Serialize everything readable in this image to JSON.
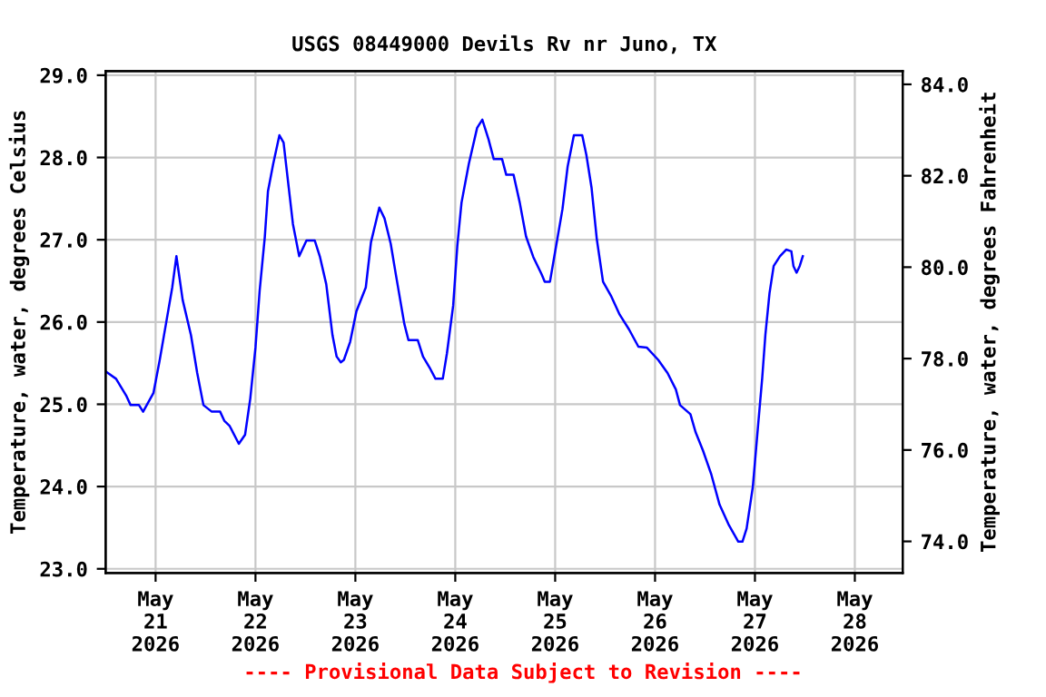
{
  "chart_data": {
    "type": "line",
    "title": "USGS 08449000 Devils Rv nr Juno, TX",
    "ylabel": "Temperature, water, degrees Celsius",
    "y2label": "Temperature, water, degrees Fahrenheit",
    "annotations": [
      "---- Provisional Data Subject to Revision ----"
    ],
    "xlim": [
      "2026-05-20T12:00",
      "2026-05-28T11:30"
    ],
    "xticks": [
      {
        "value": "2026-05-21",
        "label": "May\n21\n2026"
      },
      {
        "value": "2026-05-22",
        "label": "May\n22\n2026"
      },
      {
        "value": "2026-05-23",
        "label": "May\n23\n2026"
      },
      {
        "value": "2026-05-24",
        "label": "May\n24\n2026"
      },
      {
        "value": "2026-05-25",
        "label": "May\n25\n2026"
      },
      {
        "value": "2026-05-26",
        "label": "May\n26\n2026"
      },
      {
        "value": "2026-05-27",
        "label": "May\n27\n2026"
      },
      {
        "value": "2026-05-28",
        "label": "May\n28\n2026"
      }
    ],
    "ylim": [
      22.95,
      29.05
    ],
    "yticks": [
      {
        "value": 23,
        "label": "23.0"
      },
      {
        "value": 24,
        "label": "24.0"
      },
      {
        "value": 25,
        "label": "25.0"
      },
      {
        "value": 26,
        "label": "26.0"
      },
      {
        "value": 27,
        "label": "27.0"
      },
      {
        "value": 28,
        "label": "28.0"
      },
      {
        "value": 29,
        "label": "29.0"
      }
    ],
    "y2lim": [
      73.31,
      84.29
    ],
    "y2ticks": [
      {
        "value": 74,
        "label": "74.0"
      },
      {
        "value": 76,
        "label": "76.0"
      },
      {
        "value": 78,
        "label": "78.0"
      },
      {
        "value": 80,
        "label": "80.0"
      },
      {
        "value": 82,
        "label": "82.0"
      },
      {
        "value": 84,
        "label": "84.0"
      }
    ],
    "grid": true,
    "legend": false,
    "x": [
      "2026-05-20T12:00",
      "2026-05-20T14:30",
      "2026-05-20T17:00",
      "2026-05-20T18:00",
      "2026-05-20T20:00",
      "2026-05-20T21:00",
      "2026-05-20T23:30",
      "2026-05-21T01:00",
      "2026-05-21T02:30",
      "2026-05-21T04:00",
      "2026-05-21T05:00",
      "2026-05-21T06:30",
      "2026-05-21T08:30",
      "2026-05-21T10:00",
      "2026-05-21T11:30",
      "2026-05-21T13:30",
      "2026-05-21T15:30",
      "2026-05-21T16:30",
      "2026-05-21T17:45",
      "2026-05-21T20:00",
      "2026-05-21T21:30",
      "2026-05-21T22:45",
      "2026-05-22T00:00",
      "2026-05-22T01:00",
      "2026-05-22T02:15",
      "2026-05-22T03:00",
      "2026-05-22T04:15",
      "2026-05-22T05:45",
      "2026-05-22T06:45",
      "2026-05-22T08:00",
      "2026-05-22T09:00",
      "2026-05-22T10:30",
      "2026-05-22T12:15",
      "2026-05-22T14:15",
      "2026-05-22T15:30",
      "2026-05-22T17:00",
      "2026-05-22T18:30",
      "2026-05-22T19:30",
      "2026-05-22T20:30",
      "2026-05-22T21:15",
      "2026-05-22T22:45",
      "2026-05-23T00:15",
      "2026-05-23T02:30",
      "2026-05-23T03:45",
      "2026-05-23T05:45",
      "2026-05-23T07:00",
      "2026-05-23T08:30",
      "2026-05-23T09:45",
      "2026-05-23T11:45",
      "2026-05-23T12:45",
      "2026-05-23T15:00",
      "2026-05-23T16:15",
      "2026-05-23T18:00",
      "2026-05-23T19:15",
      "2026-05-23T21:00",
      "2026-05-23T22:00",
      "2026-05-23T23:30",
      "2026-05-24T00:30",
      "2026-05-24T01:30",
      "2026-05-24T03:15",
      "2026-05-24T05:15",
      "2026-05-24T06:30",
      "2026-05-24T08:00",
      "2026-05-24T09:15",
      "2026-05-24T11:15",
      "2026-05-24T12:15",
      "2026-05-24T14:00",
      "2026-05-24T15:30",
      "2026-05-24T17:00",
      "2026-05-24T18:45",
      "2026-05-24T20:45",
      "2026-05-24T21:30",
      "2026-05-24T22:45",
      "2026-05-25T00:15",
      "2026-05-25T01:45",
      "2026-05-25T03:00",
      "2026-05-25T04:30",
      "2026-05-25T06:30",
      "2026-05-25T07:30",
      "2026-05-25T08:45",
      "2026-05-25T10:00",
      "2026-05-25T11:30",
      "2026-05-25T13:30",
      "2026-05-25T15:30",
      "2026-05-25T17:45",
      "2026-05-25T20:00",
      "2026-05-25T22:00",
      "2026-05-26T00:45",
      "2026-05-26T03:00",
      "2026-05-26T05:00",
      "2026-05-26T06:00",
      "2026-05-26T08:30",
      "2026-05-26T09:45",
      "2026-05-26T11:30",
      "2026-05-26T13:30",
      "2026-05-26T15:30",
      "2026-05-26T17:45",
      "2026-05-26T20:00",
      "2026-05-26T21:00",
      "2026-05-26T22:00",
      "2026-05-26T23:30",
      "2026-05-27T00:45",
      "2026-05-27T01:45",
      "2026-05-27T02:30",
      "2026-05-27T03:30",
      "2026-05-27T04:30",
      "2026-05-27T06:00",
      "2026-05-27T07:30",
      "2026-05-27T08:45",
      "2026-05-27T09:15",
      "2026-05-27T10:00",
      "2026-05-27T10:45",
      "2026-05-27T11:30"
    ],
    "series": [
      {
        "color": "#0000ff",
        "values": [
          25.4,
          25.31,
          25.1,
          24.99,
          24.99,
          24.91,
          25.14,
          25.54,
          25.98,
          26.42,
          26.8,
          26.27,
          25.84,
          25.38,
          24.99,
          24.91,
          24.91,
          24.8,
          24.74,
          24.52,
          24.63,
          25.07,
          25.69,
          26.38,
          27.04,
          27.59,
          27.92,
          28.27,
          28.18,
          27.63,
          27.19,
          26.8,
          26.99,
          26.99,
          26.79,
          26.46,
          25.84,
          25.58,
          25.51,
          25.54,
          25.76,
          26.13,
          26.42,
          26.97,
          27.39,
          27.26,
          26.95,
          26.57,
          25.98,
          25.78,
          25.78,
          25.58,
          25.43,
          25.31,
          25.31,
          25.62,
          26.2,
          26.93,
          27.45,
          27.92,
          28.36,
          28.46,
          28.22,
          27.98,
          27.98,
          27.79,
          27.79,
          27.45,
          27.04,
          26.79,
          26.58,
          26.49,
          26.49,
          26.93,
          27.37,
          27.89,
          28.27,
          28.27,
          28.03,
          27.63,
          27.01,
          26.49,
          26.31,
          26.09,
          25.91,
          25.7,
          25.69,
          25.54,
          25.38,
          25.18,
          24.99,
          24.88,
          24.66,
          24.44,
          24.15,
          23.78,
          23.53,
          23.33,
          23.33,
          23.49,
          24.0,
          24.74,
          25.32,
          25.84,
          26.35,
          26.68,
          26.8,
          26.88,
          26.86,
          26.68,
          26.6,
          26.68,
          26.8
        ]
      }
    ]
  }
}
